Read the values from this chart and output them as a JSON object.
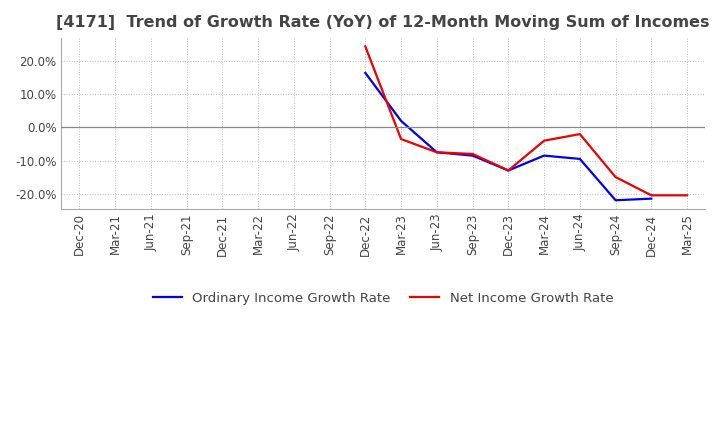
{
  "title": "[4171]  Trend of Growth Rate (YoY) of 12-Month Moving Sum of Incomes",
  "title_fontsize": 11.5,
  "title_color": "#444444",
  "background_color": "#ffffff",
  "grid_color": "#bbbbbb",
  "zero_line_color": "#888888",
  "ylim": [
    -0.245,
    0.27
  ],
  "yticks": [
    -0.2,
    -0.1,
    0.0,
    0.1,
    0.2
  ],
  "ytick_labels": [
    "-20.0%",
    "-10.0%",
    "0.0%",
    "10.0%",
    "20.0%"
  ],
  "ordinary_income": {
    "label": "Ordinary Income Growth Rate",
    "color": "#0000ee",
    "values": [
      null,
      null,
      null,
      null,
      null,
      null,
      null,
      null,
      0.165,
      0.02,
      -0.075,
      -0.085,
      -0.13,
      -0.085,
      -0.095,
      -0.22,
      -0.215,
      null
    ]
  },
  "net_income": {
    "label": "Net Income Growth Rate",
    "color": "#ee0000",
    "values": [
      null,
      null,
      null,
      null,
      null,
      null,
      null,
      null,
      0.245,
      -0.035,
      -0.075,
      -0.08,
      -0.13,
      -0.04,
      -0.02,
      -0.15,
      -0.205,
      -0.205
    ]
  },
  "xtick_labels": [
    "Dec-20",
    "Mar-21",
    "Jun-21",
    "Sep-21",
    "Dec-21",
    "Mar-22",
    "Jun-22",
    "Sep-22",
    "Dec-22",
    "Mar-23",
    "Jun-23",
    "Sep-23",
    "Dec-23",
    "Mar-24",
    "Jun-24",
    "Sep-24",
    "Dec-24",
    "Mar-25"
  ],
  "legend_fontsize": 9.5,
  "tick_fontsize": 8.5
}
